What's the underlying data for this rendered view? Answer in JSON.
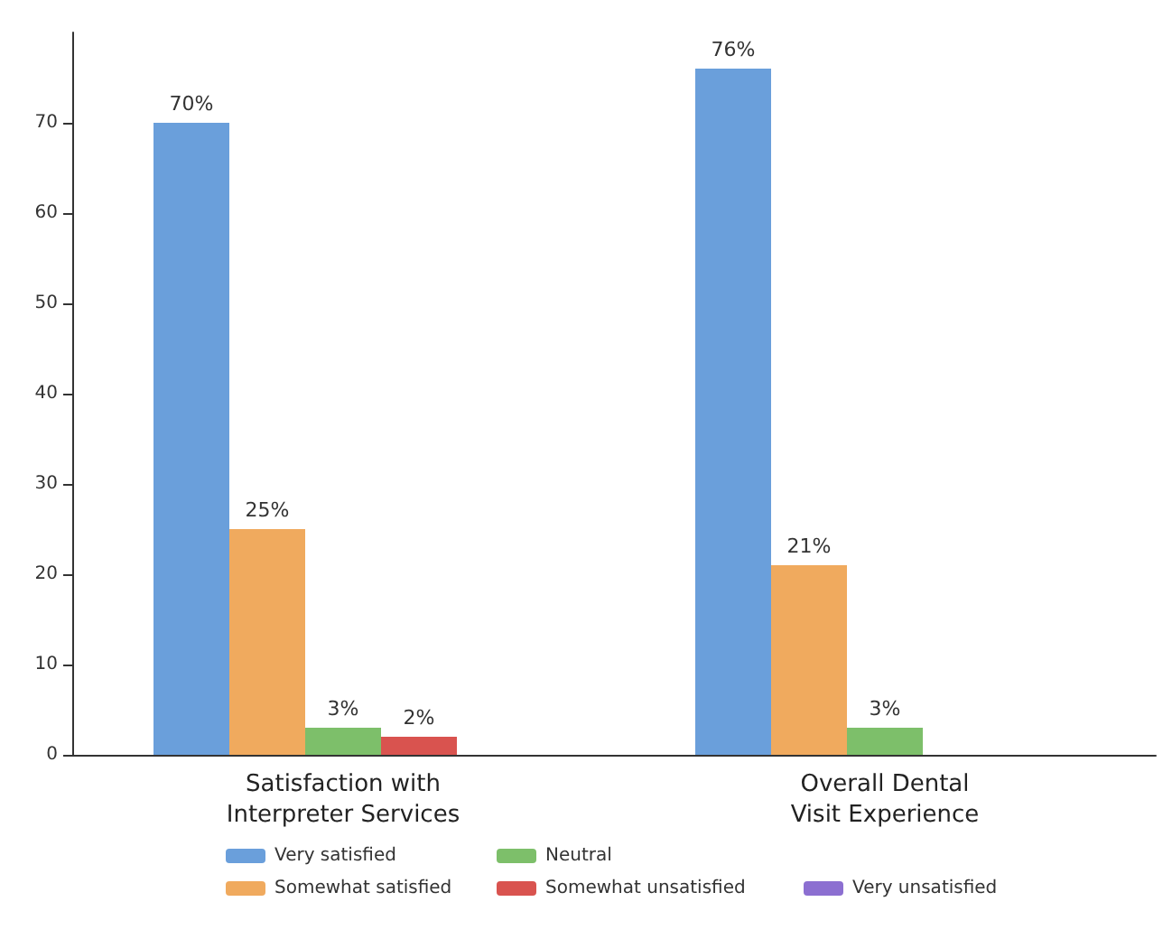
{
  "chart_data": {
    "type": "bar",
    "categories": [
      "Satisfaction with\nInterpreter Services",
      "Overall Dental\nVisit Experience"
    ],
    "series": [
      {
        "name": "Very satisfied",
        "color": "#6a9fdb",
        "values": [
          70,
          76
        ],
        "value_labels": [
          "70%",
          "76%"
        ]
      },
      {
        "name": "Somewhat satisfied",
        "color": "#f0aa5e",
        "values": [
          25,
          21
        ],
        "value_labels": [
          "25%",
          "21%"
        ]
      },
      {
        "name": "Neutral",
        "color": "#7dbf6a",
        "values": [
          3,
          3
        ],
        "value_labels": [
          "3%",
          "3%"
        ]
      },
      {
        "name": "Somewhat unsatisfied",
        "color": "#d9534f",
        "values": [
          2,
          null
        ],
        "value_labels": [
          "2%",
          null
        ]
      },
      {
        "name": "Very unsatisfied",
        "color": "#8c6fd1",
        "values": [
          null,
          null
        ],
        "value_labels": [
          null,
          null
        ]
      }
    ],
    "ylim": [
      0,
      80
    ],
    "yticks": [
      0,
      10,
      20,
      30,
      40,
      50,
      60,
      70
    ],
    "grid": false,
    "legend": "bottom"
  }
}
